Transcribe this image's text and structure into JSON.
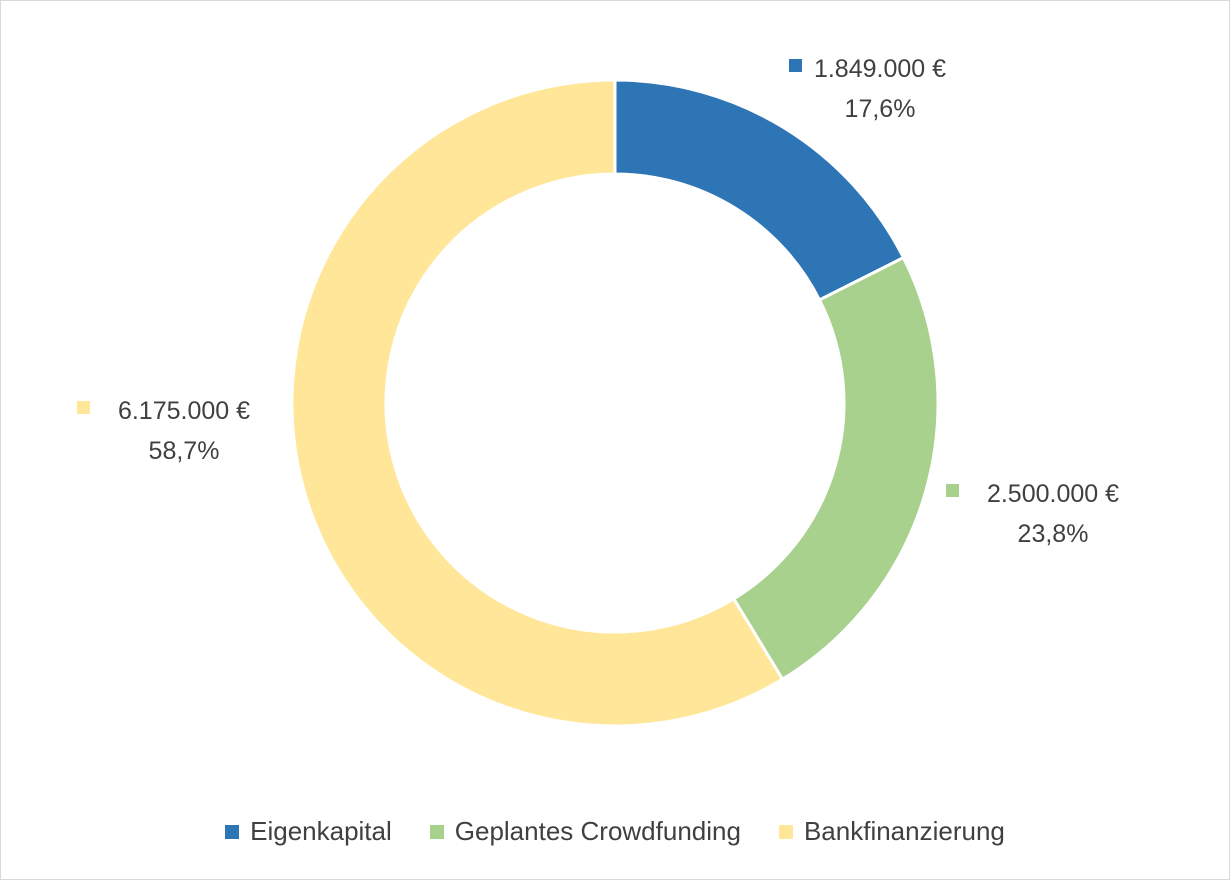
{
  "chart_data": {
    "type": "pie",
    "variant": "donut",
    "slices": [
      {
        "name": "Eigenkapital",
        "value": 1849000,
        "value_label": "1.849.000 €",
        "percent_label": "17,6%",
        "color": "#2e75b6"
      },
      {
        "name": "Geplantes Crowdfunding",
        "value": 2500000,
        "value_label": "2.500.000 €",
        "percent_label": "23,8%",
        "color": "#a9d18e"
      },
      {
        "name": "Bankfinanzierung",
        "value": 6175000,
        "value_label": "6.175.000 €",
        "percent_label": "58,7%",
        "color": "#ffe699"
      }
    ],
    "legend_position": "bottom"
  }
}
